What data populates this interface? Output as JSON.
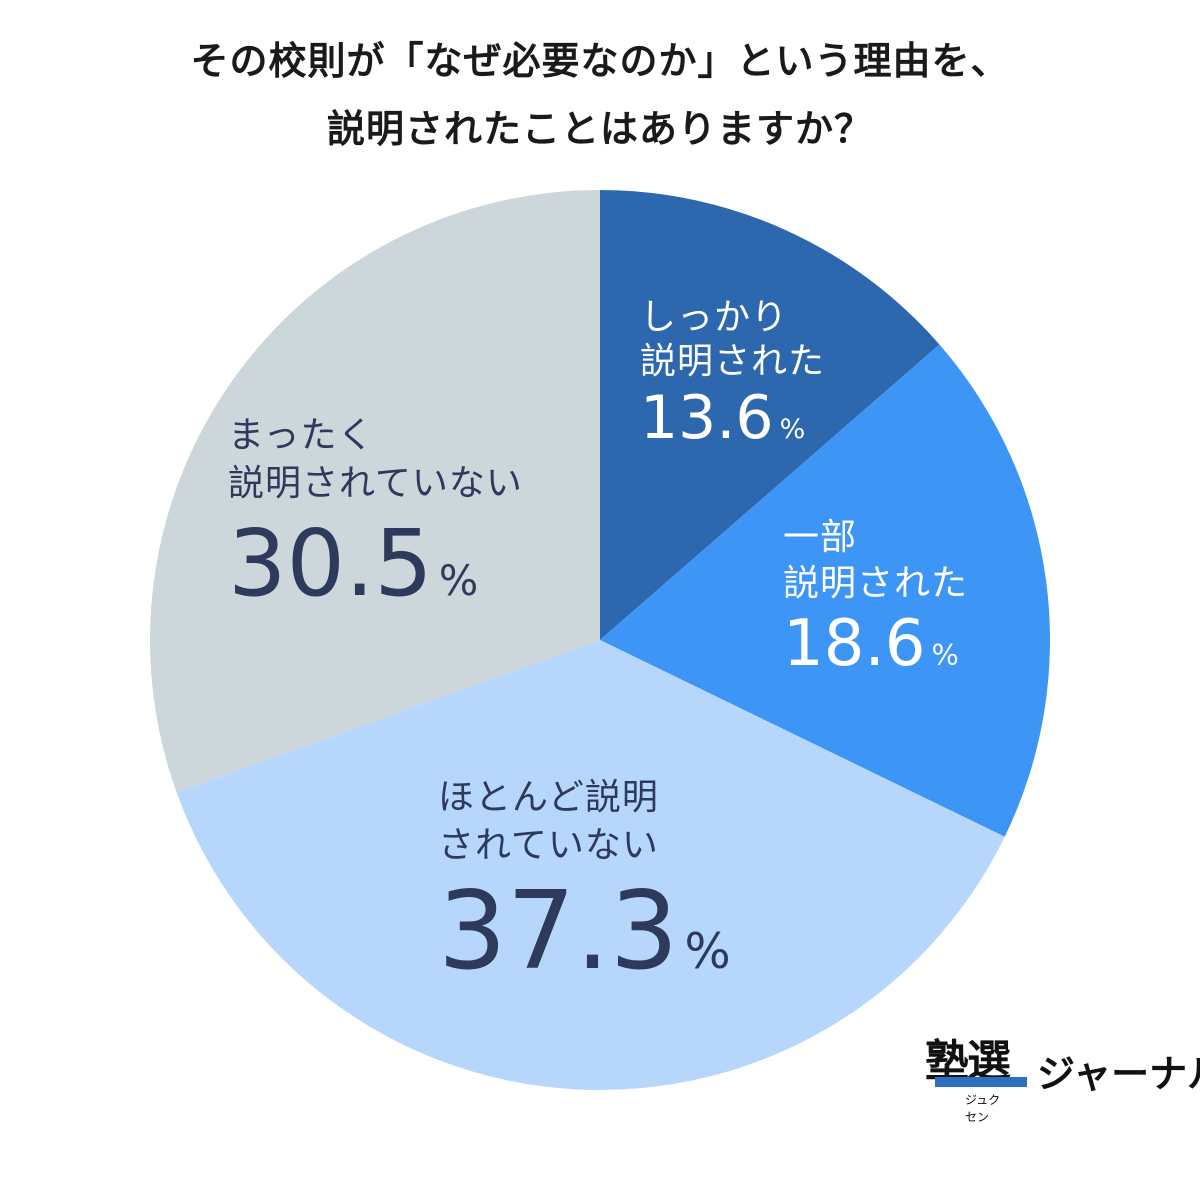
{
  "title": {
    "line1": "その校則が「なぜ必要なのか」という理由を、",
    "line2": "説明されたことはありますか？"
  },
  "chart_data": {
    "type": "pie",
    "start": "top",
    "direction": "clockwise",
    "slices": [
      {
        "label_line1": "しっかり",
        "label_line2": "説明された",
        "value": 13.6,
        "display": "13.6",
        "color": "#2d67ae"
      },
      {
        "label_line1": "一部",
        "label_line2": "説明された",
        "value": 18.6,
        "display": "18.6",
        "color": "#3d95f5"
      },
      {
        "label_line1": "ほとんど説明",
        "label_line2": "されていない",
        "value": 37.3,
        "display": "37.3",
        "color": "#b6d7fb"
      },
      {
        "label_line1": "まったく",
        "label_line2": "説明されていない",
        "value": 30.5,
        "display": "30.5",
        "color": "#cdd6da"
      }
    ],
    "unit": "%"
  },
  "logo": {
    "main": "塾選",
    "sub": "ジュクセン",
    "journal": "ジャーナル"
  }
}
